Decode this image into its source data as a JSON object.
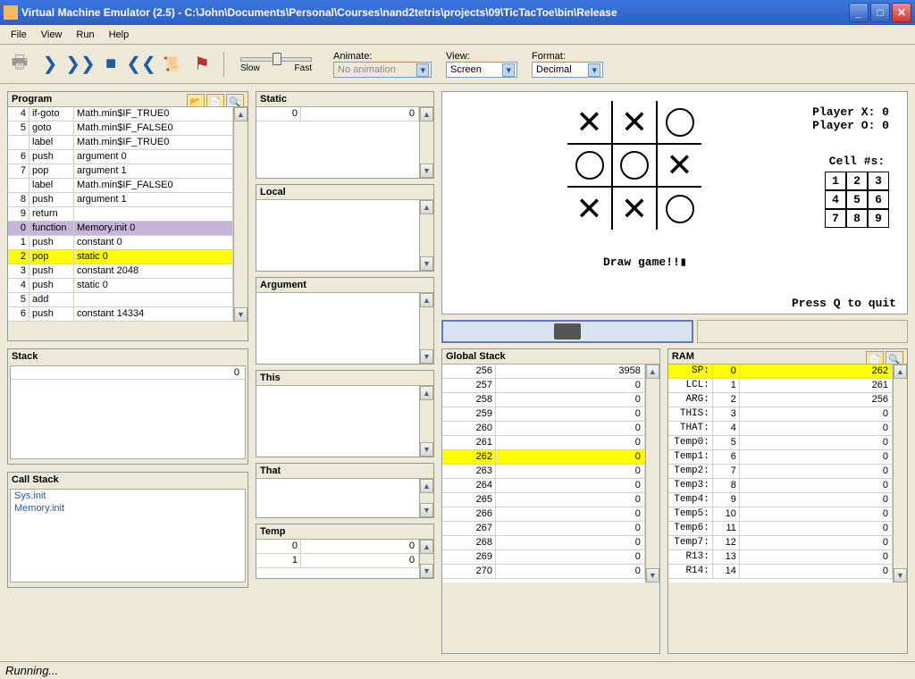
{
  "window": {
    "title": "Virtual Machine Emulator (2.5) - C:\\John\\Documents\\Personal\\Courses\\nand2tetris\\projects\\09\\TicTacToe\\bin\\Release"
  },
  "menus": [
    "File",
    "View",
    "Run",
    "Help"
  ],
  "toolbar": {
    "animate_label": "Animate:",
    "animate_value": "No animation",
    "slow": "Slow",
    "fast": "Fast",
    "view_label": "View:",
    "view_value": "Screen",
    "format_label": "Format:",
    "format_value": "Decimal"
  },
  "panels": {
    "program": "Program",
    "static": "Static",
    "local": "Local",
    "argument": "Argument",
    "this_": "This",
    "that": "That",
    "temp": "Temp",
    "stack": "Stack",
    "callstack": "Call Stack",
    "globalstack": "Global Stack",
    "ram": "RAM"
  },
  "program": [
    {
      "n": "4",
      "op": "if-goto",
      "arg": "Math.min$IF_TRUE0",
      "hl": ""
    },
    {
      "n": "5",
      "op": "goto",
      "arg": "Math.min$IF_FALSE0",
      "hl": ""
    },
    {
      "n": "",
      "op": "label",
      "arg": "Math.min$IF_TRUE0",
      "hl": ""
    },
    {
      "n": "6",
      "op": "push",
      "arg": "argument 0",
      "hl": ""
    },
    {
      "n": "7",
      "op": "pop",
      "arg": "argument 1",
      "hl": ""
    },
    {
      "n": "",
      "op": "label",
      "arg": "Math.min$IF_FALSE0",
      "hl": ""
    },
    {
      "n": "8",
      "op": "push",
      "arg": "argument 1",
      "hl": ""
    },
    {
      "n": "9",
      "op": "return",
      "arg": "",
      "hl": ""
    },
    {
      "n": "0",
      "op": "function",
      "arg": "Memory.init 0",
      "hl": "purple"
    },
    {
      "n": "1",
      "op": "push",
      "arg": "constant 0",
      "hl": ""
    },
    {
      "n": "2",
      "op": "pop",
      "arg": "static 0",
      "hl": "yellow"
    },
    {
      "n": "3",
      "op": "push",
      "arg": "constant 2048",
      "hl": ""
    },
    {
      "n": "4",
      "op": "push",
      "arg": "static 0",
      "hl": ""
    },
    {
      "n": "5",
      "op": "add",
      "arg": "",
      "hl": ""
    },
    {
      "n": "6",
      "op": "push",
      "arg": "constant 14334",
      "hl": ""
    }
  ],
  "static_seg": [
    {
      "a": "0",
      "v": "0"
    }
  ],
  "temp_seg": [
    {
      "a": "0",
      "v": "0"
    },
    {
      "a": "1",
      "v": "0"
    }
  ],
  "stack_val": "0",
  "callstack": [
    "Sys.init",
    "Memory.init"
  ],
  "globalstack": [
    {
      "a": "256",
      "v": "3958",
      "hl": ""
    },
    {
      "a": "257",
      "v": "0",
      "hl": ""
    },
    {
      "a": "258",
      "v": "0",
      "hl": ""
    },
    {
      "a": "259",
      "v": "0",
      "hl": ""
    },
    {
      "a": "260",
      "v": "0",
      "hl": ""
    },
    {
      "a": "261",
      "v": "0",
      "hl": ""
    },
    {
      "a": "262",
      "v": "0",
      "hl": "yellow"
    },
    {
      "a": "263",
      "v": "0",
      "hl": ""
    },
    {
      "a": "264",
      "v": "0",
      "hl": ""
    },
    {
      "a": "265",
      "v": "0",
      "hl": ""
    },
    {
      "a": "266",
      "v": "0",
      "hl": ""
    },
    {
      "a": "267",
      "v": "0",
      "hl": ""
    },
    {
      "a": "268",
      "v": "0",
      "hl": ""
    },
    {
      "a": "269",
      "v": "0",
      "hl": ""
    },
    {
      "a": "270",
      "v": "0",
      "hl": ""
    }
  ],
  "ram": [
    {
      "l": "SP:",
      "a": "0",
      "v": "262",
      "hl": "yellow"
    },
    {
      "l": "LCL:",
      "a": "1",
      "v": "261",
      "hl": ""
    },
    {
      "l": "ARG:",
      "a": "2",
      "v": "256",
      "hl": ""
    },
    {
      "l": "THIS:",
      "a": "3",
      "v": "0",
      "hl": ""
    },
    {
      "l": "THAT:",
      "a": "4",
      "v": "0",
      "hl": ""
    },
    {
      "l": "Temp0:",
      "a": "5",
      "v": "0",
      "hl": ""
    },
    {
      "l": "Temp1:",
      "a": "6",
      "v": "0",
      "hl": ""
    },
    {
      "l": "Temp2:",
      "a": "7",
      "v": "0",
      "hl": ""
    },
    {
      "l": "Temp3:",
      "a": "8",
      "v": "0",
      "hl": ""
    },
    {
      "l": "Temp4:",
      "a": "9",
      "v": "0",
      "hl": ""
    },
    {
      "l": "Temp5:",
      "a": "10",
      "v": "0",
      "hl": ""
    },
    {
      "l": "Temp6:",
      "a": "11",
      "v": "0",
      "hl": ""
    },
    {
      "l": "Temp7:",
      "a": "12",
      "v": "0",
      "hl": ""
    },
    {
      "l": "R13:",
      "a": "13",
      "v": "0",
      "hl": ""
    },
    {
      "l": "R14:",
      "a": "14",
      "v": "0",
      "hl": ""
    }
  ],
  "screen": {
    "playerx": "Player X: 0",
    "playero": "Player O: 0",
    "cellnums_label": "Cell #s:",
    "cells": [
      "1",
      "2",
      "3",
      "4",
      "5",
      "6",
      "7",
      "8",
      "9"
    ],
    "board": [
      "X",
      "X",
      "O",
      "O",
      "O",
      "X",
      "X",
      "X",
      "O"
    ],
    "draw": "Draw game!!",
    "quit": "Press Q to quit"
  },
  "status": "Running..."
}
